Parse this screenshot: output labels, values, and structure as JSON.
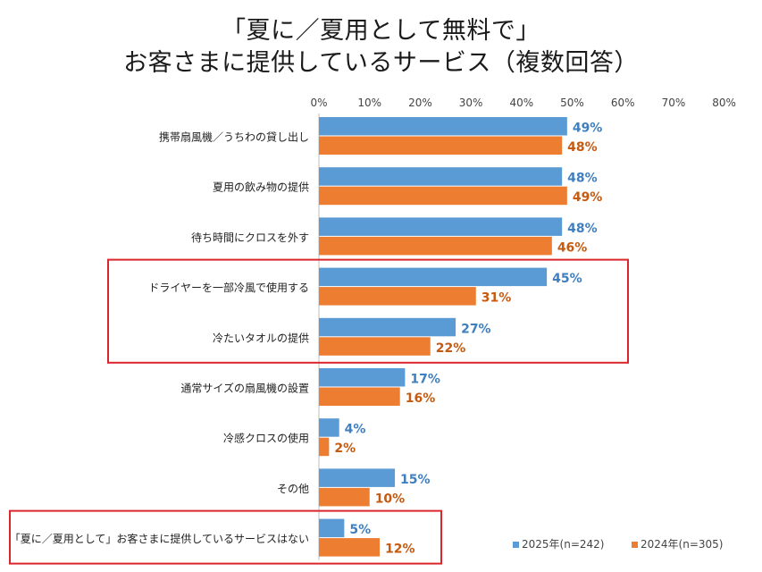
{
  "title_line1": "「夏に／夏用として無料で」",
  "title_line2": "お客さまに提供しているサービス（複数回答）",
  "chart_data": {
    "type": "bar",
    "orientation": "horizontal",
    "xlim": [
      0,
      80
    ],
    "xticks": [
      "0%",
      "10%",
      "20%",
      "30%",
      "40%",
      "50%",
      "60%",
      "70%",
      "80%"
    ],
    "categories": [
      "携帯扇風機／うちわの貸し出し",
      "夏用の飲み物の提供",
      "待ち時間にクロスを外す",
      "ドライヤーを一部冷風で使用する",
      "冷たいタオルの提供",
      "通常サイズの扇風機の設置",
      "冷感クロスの使用",
      "その他",
      "「夏に／夏用として」お客さまに提供しているサービスはない"
    ],
    "series": [
      {
        "name": "2025年(n=242)",
        "color": "#5b9bd5",
        "values": [
          49,
          48,
          48,
          45,
          27,
          17,
          4,
          15,
          5
        ],
        "labels": [
          "49%",
          "48%",
          "48%",
          "45%",
          "27%",
          "17%",
          "4%",
          "15%",
          "5%"
        ]
      },
      {
        "name": "2024年(n=305)",
        "color": "#ed7d31",
        "values": [
          48,
          49,
          46,
          31,
          22,
          16,
          2,
          10,
          12
        ],
        "labels": [
          "48%",
          "49%",
          "46%",
          "31%",
          "22%",
          "16%",
          "2%",
          "10%",
          "12%"
        ]
      }
    ],
    "grid": false,
    "legend_position": "bottom-right",
    "highlight_boxes": [
      [
        3,
        4
      ],
      [
        8,
        8
      ]
    ],
    "highlight_color": "#d9262c"
  }
}
